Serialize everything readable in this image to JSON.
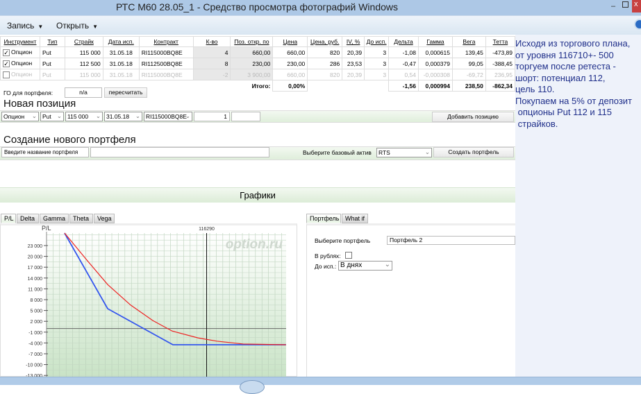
{
  "window": {
    "title": "РТС М60 28.05_1 - Средство просмотра фотографий Windows"
  },
  "toolbar": {
    "menus": [
      {
        "label": "Запись"
      },
      {
        "label": "Открыть"
      }
    ]
  },
  "positions": {
    "headers": [
      "Инструмент",
      "Тип",
      "Страйк",
      "Дата исп.",
      "Контракт",
      "К-во",
      "Поз. откр. по",
      "Цена",
      "Цена, руб.",
      "IV, %",
      "До исп.",
      "Дельта",
      "Гамма",
      "Вега",
      "Тетта"
    ],
    "rows": [
      {
        "checked": true,
        "cells": [
          "Опцион",
          "Put",
          "115 000",
          "31.05.18",
          "RI115000BQ8E",
          "4",
          "660,00",
          "660,00",
          "820",
          "20,39",
          "3",
          "-1,08",
          "0,000615",
          "139,45",
          "-473,89"
        ]
      },
      {
        "checked": true,
        "cells": [
          "Опцион",
          "Put",
          "112 500",
          "31.05.18",
          "RI112500BQ8E",
          "8",
          "230,00",
          "230,00",
          "286",
          "23,53",
          "3",
          "-0,47",
          "0,000379",
          "99,05",
          "-388,45"
        ]
      },
      {
        "checked": false,
        "cells": [
          "Опцион",
          "Put",
          "115 000",
          "31.05.18",
          "RI115000BQ8E",
          "-2",
          "3 900,00",
          "660,00",
          "820",
          "20,39",
          "3",
          "0,54",
          "-0,000308",
          "-69,72",
          "236,95"
        ]
      }
    ],
    "totals": {
      "label": "Итого:",
      "pct": "0,00%",
      "delta": "-1,56",
      "gamma": "0,000994",
      "vega": "238,50",
      "theta": "-862,34"
    }
  },
  "margin": {
    "label": "ГО для портфеля:",
    "value": "n/a",
    "recalc_button": "пересчитать"
  },
  "new_position": {
    "title": "Новая позиция",
    "instrument": "Опцион",
    "type": "Put",
    "strike": "115 000",
    "date": "31.05.18",
    "contract": "RI115000BQ8E",
    "qty": "1",
    "add_button": "Добавить позицию"
  },
  "new_portfolio": {
    "title": "Создание нового портфеля",
    "name_placeholder": "Введите название портфеля",
    "asset_label": "Выберите базовый актив",
    "asset": "RTS",
    "create_button": "Создать портфель"
  },
  "charts": {
    "title": "Графики",
    "tabs": [
      "P/L",
      "Delta",
      "Gamma",
      "Theta",
      "Vega"
    ],
    "active_tab": "P/L"
  },
  "side_panel": {
    "tabs": [
      "Портфель",
      "What if"
    ],
    "portfolio_label": "Выберите портфель",
    "portfolio": "Портфель 2",
    "rub_label": "В рублях:",
    "rub_checked": false,
    "expiry_label": "До исп.:",
    "expiry": "В днях"
  },
  "note": {
    "text": "Исходя из торгового плана,\nот уровня 116710+- 500\nторгуем после ретеста -\nшорт: потенциал 112,\nцель 110.\nПокупаем на 5% от депозит\n опционы Put 112 и 115\n страйков."
  },
  "chart_data": {
    "type": "line",
    "ylabel": "P/L",
    "watermark": "option.ru",
    "yticks": [
      "23 000",
      "20 000",
      "17 000",
      "14 000",
      "11 000",
      "8 000",
      "5 000",
      "2 000",
      "-1 000",
      "-4 000",
      "-7 000",
      "-10 000",
      "-13 000"
    ],
    "ytick_values": [
      23000,
      20000,
      17000,
      14000,
      11000,
      8000,
      5000,
      2000,
      -1000,
      -4000,
      -7000,
      -10000,
      -13000
    ],
    "ylim": [
      -13000,
      26500
    ],
    "xlim": [
      110160,
      119330
    ],
    "current_price_label": "116290",
    "current_price": 116290,
    "grid": true,
    "series": [
      {
        "color": "#3355ee",
        "x": [
          110850,
          112500,
          115000,
          119330
        ],
        "y": [
          26500,
          5500,
          -4500,
          -4500
        ]
      },
      {
        "color": "#ee2222",
        "x": [
          110850,
          111700,
          112500,
          113380,
          114230,
          114970,
          115960,
          116680,
          117690,
          119330
        ],
        "y": [
          26500,
          19000,
          12200,
          6500,
          2200,
          -700,
          -2600,
          -3500,
          -4300,
          -4500
        ]
      }
    ]
  }
}
